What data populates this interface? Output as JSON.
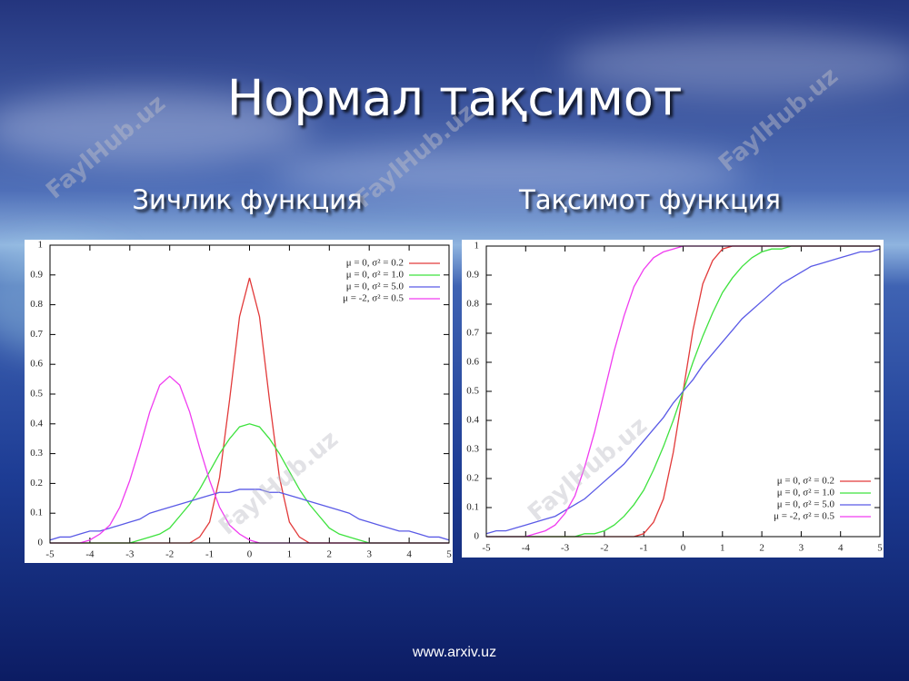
{
  "slide": {
    "title": "Нормал тақсимот",
    "footer": "www.arxiv.uz",
    "watermark": "FaylHub.uz"
  },
  "chart_data": [
    {
      "type": "line",
      "title": "Зичлик функция",
      "legend": "upper right",
      "xlim": [
        -5,
        5
      ],
      "ylim": [
        0,
        1
      ],
      "xticks": [
        -5,
        -4,
        -3,
        -2,
        -1,
        0,
        1,
        2,
        3,
        4,
        5
      ],
      "yticks": [
        0,
        0.1,
        0.2,
        0.3,
        0.4,
        0.5,
        0.6,
        0.7,
        0.8,
        0.9,
        1
      ],
      "x": [
        -5,
        -4.75,
        -4.5,
        -4.25,
        -4,
        -3.75,
        -3.5,
        -3.25,
        -3,
        -2.75,
        -2.5,
        -2.25,
        -2,
        -1.75,
        -1.5,
        -1.25,
        -1,
        -0.75,
        -0.5,
        -0.25,
        0,
        0.25,
        0.5,
        0.75,
        1,
        1.25,
        1.5,
        1.75,
        2,
        2.25,
        2.5,
        2.75,
        3,
        3.25,
        3.5,
        3.75,
        4,
        4.25,
        4.5,
        4.75,
        5
      ],
      "series": [
        {
          "name": "μ = 0, σ² = 0.2",
          "color": "#e23a3a",
          "values": [
            0,
            0,
            0,
            0,
            0,
            0,
            0,
            0,
            0,
            0,
            0,
            0,
            0,
            0,
            0,
            0.02,
            0.07,
            0.22,
            0.48,
            0.76,
            0.89,
            0.76,
            0.48,
            0.22,
            0.07,
            0.02,
            0,
            0,
            0,
            0,
            0,
            0,
            0,
            0,
            0,
            0,
            0,
            0,
            0,
            0,
            0
          ]
        },
        {
          "name": "μ = 0, σ² = 1.0",
          "color": "#3ee23e",
          "values": [
            0,
            0,
            0,
            0,
            0,
            0,
            0,
            0,
            0,
            0.01,
            0.02,
            0.03,
            0.05,
            0.09,
            0.13,
            0.18,
            0.24,
            0.3,
            0.35,
            0.39,
            0.4,
            0.39,
            0.35,
            0.3,
            0.24,
            0.18,
            0.13,
            0.09,
            0.05,
            0.03,
            0.02,
            0.01,
            0,
            0,
            0,
            0,
            0,
            0,
            0,
            0,
            0
          ]
        },
        {
          "name": "μ = 0, σ² = 5.0",
          "color": "#5a5ae6",
          "values": [
            0.01,
            0.02,
            0.02,
            0.03,
            0.04,
            0.04,
            0.05,
            0.06,
            0.07,
            0.08,
            0.1,
            0.11,
            0.12,
            0.13,
            0.14,
            0.15,
            0.16,
            0.17,
            0.17,
            0.18,
            0.18,
            0.18,
            0.17,
            0.17,
            0.16,
            0.15,
            0.14,
            0.13,
            0.12,
            0.11,
            0.1,
            0.08,
            0.07,
            0.06,
            0.05,
            0.04,
            0.04,
            0.03,
            0.02,
            0.02,
            0.01
          ]
        },
        {
          "name": "μ = -2, σ² = 0.5",
          "color": "#f03cf0",
          "values": [
            0,
            0,
            0,
            0,
            0.01,
            0.03,
            0.06,
            0.12,
            0.21,
            0.32,
            0.44,
            0.53,
            0.56,
            0.53,
            0.44,
            0.32,
            0.21,
            0.12,
            0.06,
            0.03,
            0.01,
            0,
            0,
            0,
            0,
            0,
            0,
            0,
            0,
            0,
            0,
            0,
            0,
            0,
            0,
            0,
            0,
            0,
            0,
            0,
            0
          ]
        }
      ]
    },
    {
      "type": "line",
      "title": "Тақсимот функция",
      "legend": "lower right",
      "xlim": [
        -5,
        5
      ],
      "ylim": [
        0,
        1
      ],
      "xticks": [
        -5,
        -4,
        -3,
        -2,
        -1,
        0,
        1,
        2,
        3,
        4,
        5
      ],
      "yticks": [
        0,
        0.1,
        0.2,
        0.3,
        0.4,
        0.5,
        0.6,
        0.7,
        0.8,
        0.9,
        1
      ],
      "x": [
        -5,
        -4.75,
        -4.5,
        -4.25,
        -4,
        -3.75,
        -3.5,
        -3.25,
        -3,
        -2.75,
        -2.5,
        -2.25,
        -2,
        -1.75,
        -1.5,
        -1.25,
        -1,
        -0.75,
        -0.5,
        -0.25,
        0,
        0.25,
        0.5,
        0.75,
        1,
        1.25,
        1.5,
        1.75,
        2,
        2.25,
        2.5,
        2.75,
        3,
        3.25,
        3.5,
        3.75,
        4,
        4.25,
        4.5,
        4.75,
        5
      ],
      "series": [
        {
          "name": "μ = 0, σ² = 0.2",
          "color": "#e23a3a",
          "values": [
            0,
            0,
            0,
            0,
            0,
            0,
            0,
            0,
            0,
            0,
            0,
            0,
            0,
            0,
            0,
            0,
            0.01,
            0.05,
            0.13,
            0.29,
            0.5,
            0.71,
            0.87,
            0.95,
            0.99,
            1,
            1,
            1,
            1,
            1,
            1,
            1,
            1,
            1,
            1,
            1,
            1,
            1,
            1,
            1,
            1
          ]
        },
        {
          "name": "μ = 0, σ² = 1.0",
          "color": "#3ee23e",
          "values": [
            0,
            0,
            0,
            0,
            0,
            0,
            0,
            0,
            0,
            0,
            0.01,
            0.01,
            0.02,
            0.04,
            0.07,
            0.11,
            0.16,
            0.23,
            0.31,
            0.4,
            0.5,
            0.6,
            0.69,
            0.77,
            0.84,
            0.89,
            0.93,
            0.96,
            0.98,
            0.99,
            0.99,
            1,
            1,
            1,
            1,
            1,
            1,
            1,
            1,
            1,
            1
          ]
        },
        {
          "name": "μ = 0, σ² = 5.0",
          "color": "#5a5ae6",
          "values": [
            0.01,
            0.02,
            0.02,
            0.03,
            0.04,
            0.05,
            0.06,
            0.07,
            0.09,
            0.11,
            0.13,
            0.16,
            0.19,
            0.22,
            0.25,
            0.29,
            0.33,
            0.37,
            0.41,
            0.46,
            0.5,
            0.54,
            0.59,
            0.63,
            0.67,
            0.71,
            0.75,
            0.78,
            0.81,
            0.84,
            0.87,
            0.89,
            0.91,
            0.93,
            0.94,
            0.95,
            0.96,
            0.97,
            0.98,
            0.98,
            0.99
          ]
        },
        {
          "name": "μ = -2, σ² = 0.5",
          "color": "#f03cf0",
          "values": [
            0,
            0,
            0,
            0,
            0,
            0.01,
            0.02,
            0.04,
            0.08,
            0.14,
            0.24,
            0.36,
            0.5,
            0.64,
            0.76,
            0.86,
            0.92,
            0.96,
            0.98,
            0.99,
            1,
            1,
            1,
            1,
            1,
            1,
            1,
            1,
            1,
            1,
            1,
            1,
            1,
            1,
            1,
            1,
            1,
            1,
            1,
            1,
            1
          ]
        }
      ]
    }
  ]
}
